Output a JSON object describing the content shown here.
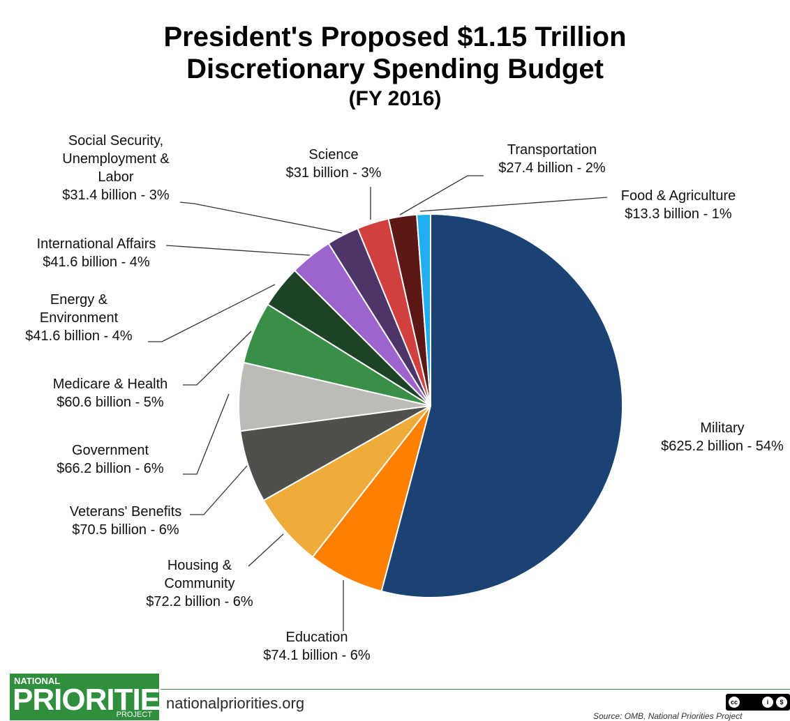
{
  "title": {
    "line1": "President's Proposed $1.15 Trillion",
    "line2": "Discretionary Spending Budget",
    "line3": "(FY 2016)"
  },
  "chart_data": {
    "type": "pie",
    "title": "President's Proposed $1.15 Trillion Discretionary Spending Budget (FY 2016)",
    "slices": [
      {
        "name": "Military",
        "value": 625.2,
        "label": [
          "Military",
          "$625.2 billion - 54%"
        ],
        "color": "#1a4272"
      },
      {
        "name": "Education",
        "value": 74.1,
        "label": [
          "Education",
          "$74.1 billion - 6%"
        ],
        "color": "#ff8000"
      },
      {
        "name": "Housing & Community",
        "value": 72.2,
        "label": [
          "Housing &",
          "Community",
          "$72.2 billion - 6%"
        ],
        "color": "#f0ac3a"
      },
      {
        "name": "Veterans' Benefits",
        "value": 70.5,
        "label": [
          "Veterans' Benefits",
          "$70.5 billion - 6%"
        ],
        "color": "#4f4f4c"
      },
      {
        "name": "Government",
        "value": 66.2,
        "label": [
          "Government",
          "$66.2 billion - 6%"
        ],
        "color": "#bdbbb6"
      },
      {
        "name": "Medicare & Health",
        "value": 60.6,
        "label": [
          "Medicare & Health",
          "$60.6 billion - 5%"
        ],
        "color": "#3a8f48"
      },
      {
        "name": "Energy & Environment",
        "value": 41.6,
        "label": [
          "Energy &",
          "Environment",
          "$41.6 billion - 4%"
        ],
        "color": "#1d4225"
      },
      {
        "name": "International Affairs",
        "value": 41.6,
        "label": [
          "International Affairs",
          "$41.6 billion - 4%"
        ],
        "color": "#9d65cc"
      },
      {
        "name": "Social Security, Unemployment & Labor",
        "value": 31.4,
        "label": [
          "Social Security,",
          "Unemployment &",
          "Labor",
          "$31.4 billion - 3%"
        ],
        "color": "#4d3569"
      },
      {
        "name": "Science",
        "value": 31.0,
        "label": [
          "Science",
          "$31 billion - 3%"
        ],
        "color": "#d13f3f"
      },
      {
        "name": "Transportation",
        "value": 27.4,
        "label": [
          "Transportation",
          "$27.4 billion - 2%"
        ],
        "color": "#5c1717"
      },
      {
        "name": "Food & Agriculture",
        "value": 13.3,
        "label": [
          "Food & Agriculture",
          "$13.3 billion - 1%"
        ],
        "color": "#20aef0"
      }
    ]
  },
  "footer": {
    "logo_top": "NATIONAL",
    "logo_main": "PRIORITIES",
    "logo_bottom": "PROJECT",
    "website": "nationalpriorities.org",
    "source": "Source: OMB, National Priorities Project"
  }
}
